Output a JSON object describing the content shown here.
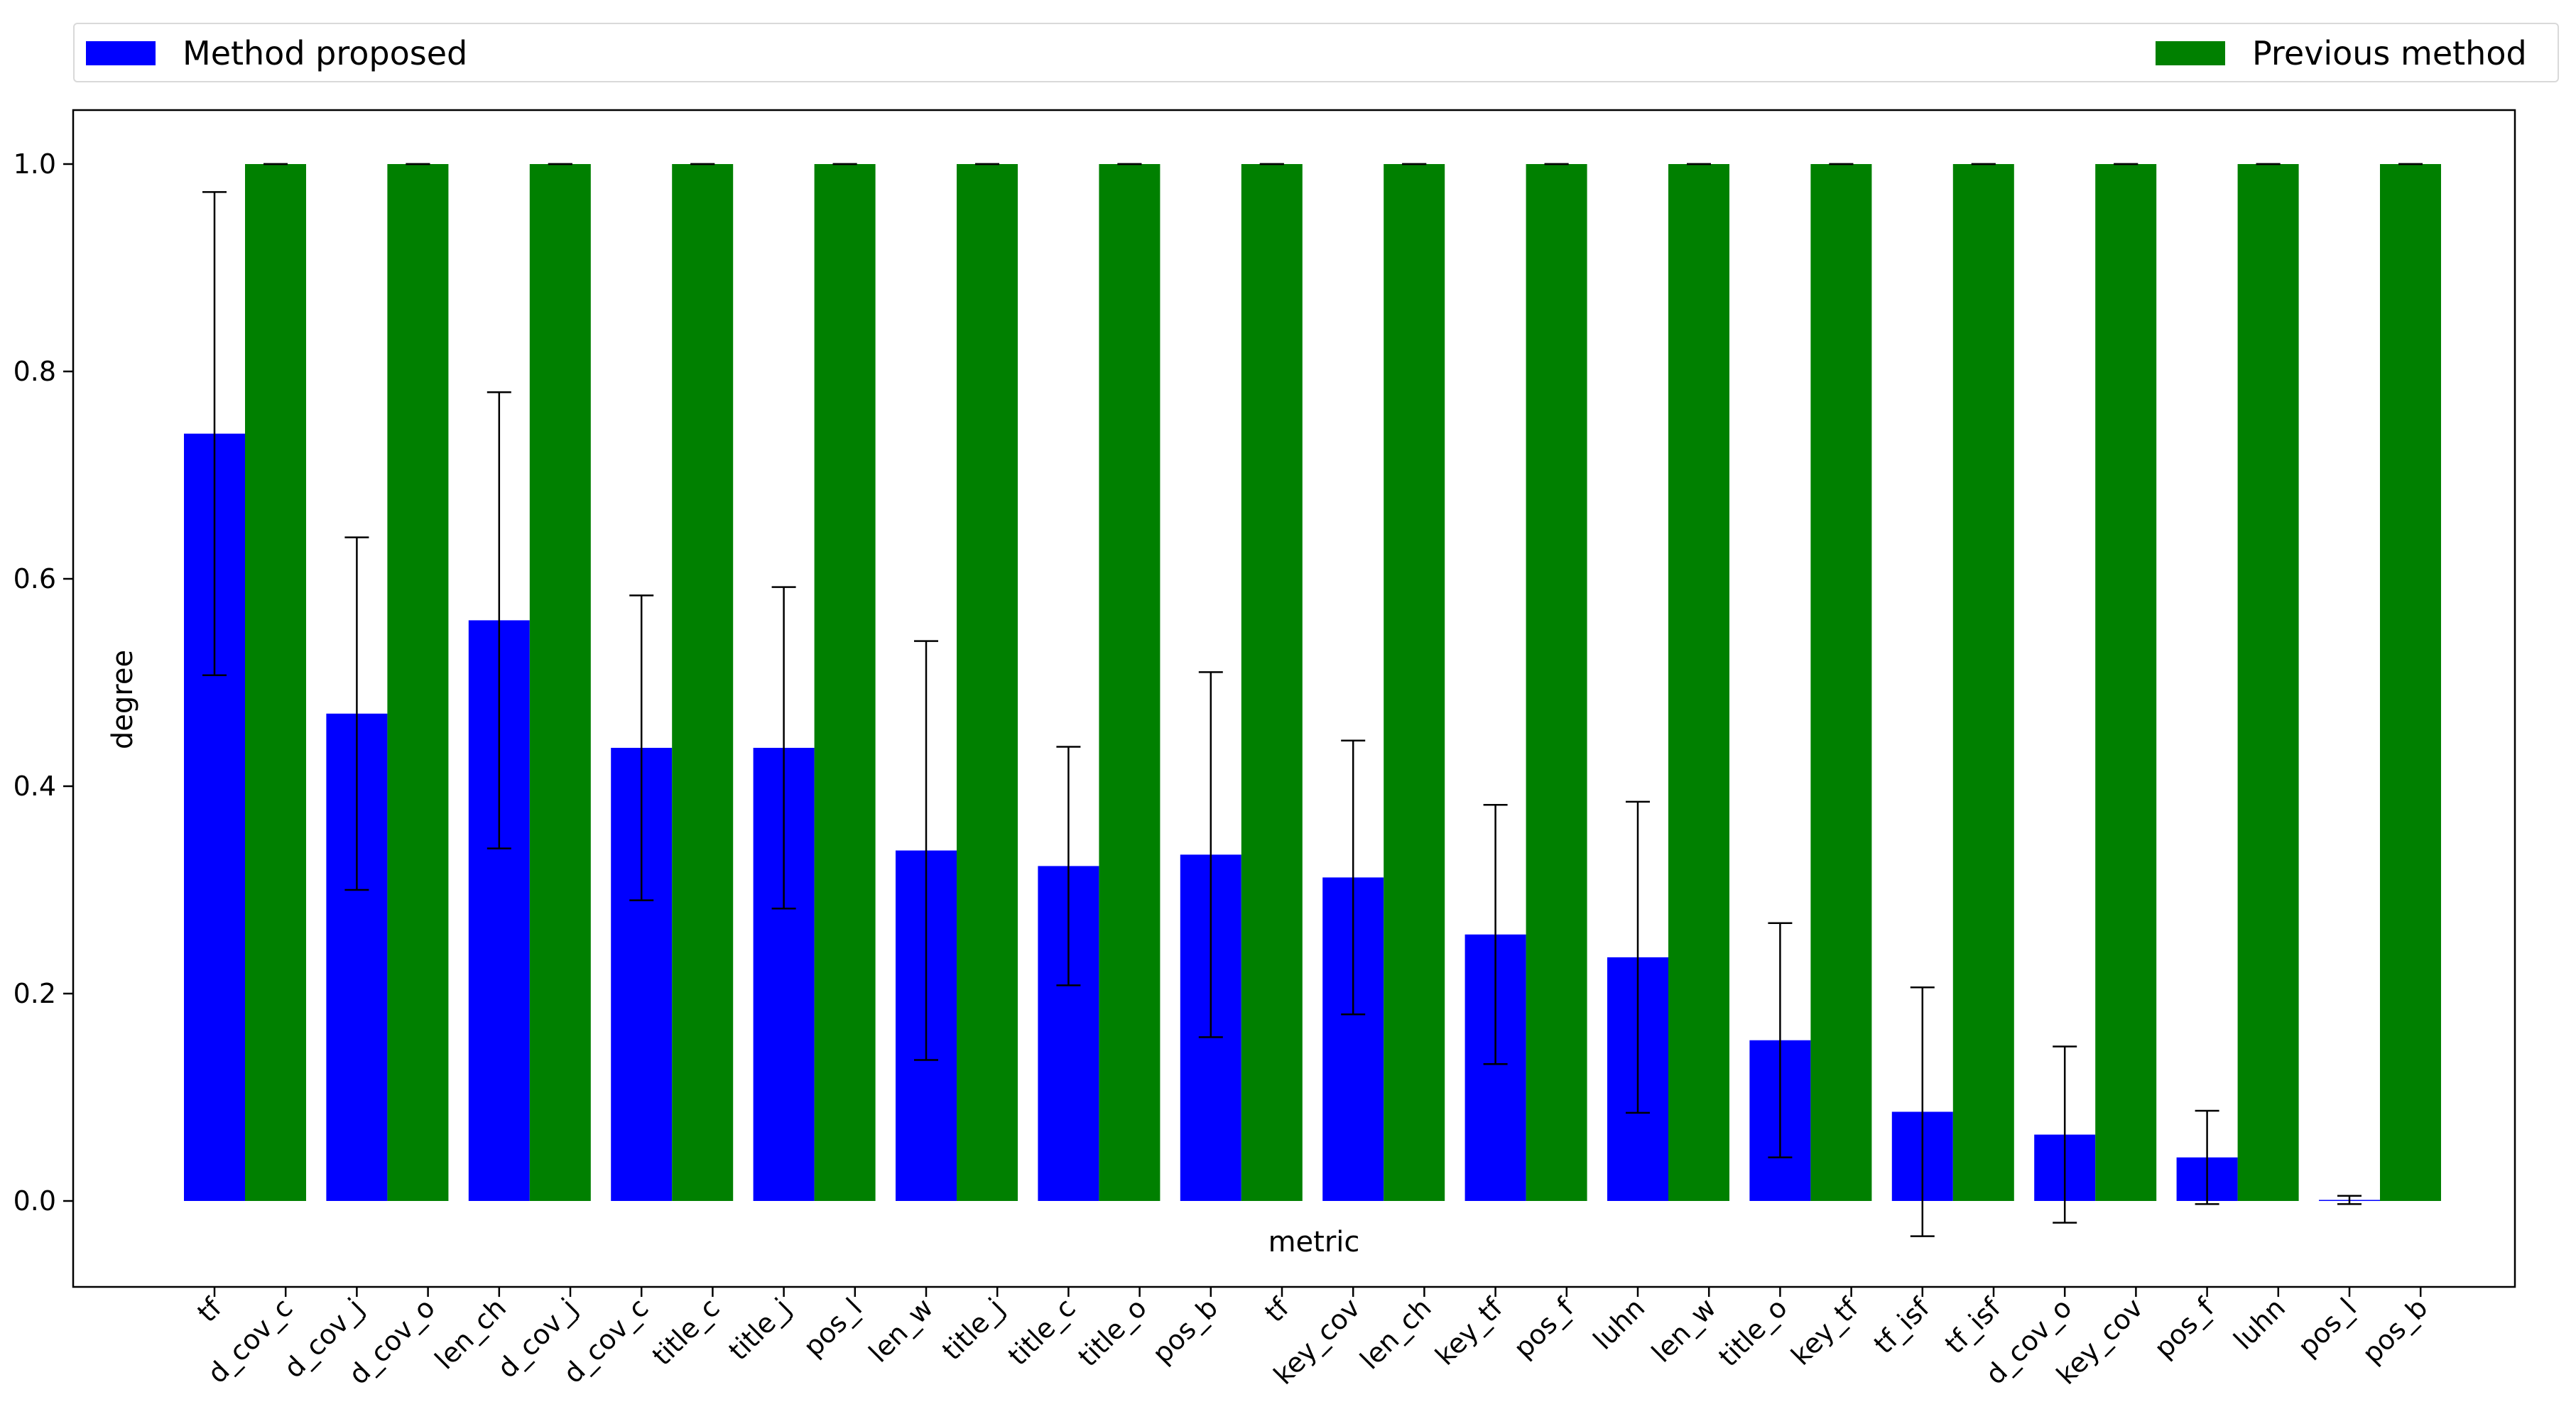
{
  "chart_data": {
    "type": "bar",
    "title": "",
    "xlabel": "metric",
    "ylabel": "degree",
    "ylim": [
      0,
      1.05
    ],
    "yticks": [
      "0.0",
      "0.2",
      "0.4",
      "0.6",
      "0.8",
      "1.0"
    ],
    "grid": false,
    "legend_placement": "top, outside plot, spanning width",
    "groups": 16,
    "tick_labels": [
      "tf",
      "d_cov_c",
      "d_cov_j",
      "d_cov_o",
      "len_ch",
      "d_cov_j",
      "d_cov_c",
      "title_c",
      "title_j",
      "pos_l",
      "len_w",
      "title_j",
      "title_c",
      "title_o",
      "pos_b",
      "tf",
      "key_cov",
      "len_ch",
      "key_tf",
      "pos_f",
      "luhn",
      "len_w",
      "title_o",
      "key_tf",
      "tf_isf",
      "tf_isf",
      "d_cov_o",
      "key_cov",
      "pos_f",
      "luhn",
      "pos_l",
      "pos_b"
    ],
    "series": [
      {
        "name": "Method proposed",
        "color": "#0000ff",
        "values": [
          0.74,
          0.47,
          0.56,
          0.437,
          0.437,
          0.338,
          0.323,
          0.334,
          0.312,
          0.257,
          0.235,
          0.155,
          0.086,
          0.064,
          0.042,
          0.001
        ],
        "errors": [
          0.233,
          0.17,
          0.22,
          0.147,
          0.155,
          0.202,
          0.115,
          0.176,
          0.132,
          0.125,
          0.15,
          0.113,
          0.12,
          0.085,
          0.045,
          0.004
        ]
      },
      {
        "name": "Previous method",
        "color": "#008000",
        "values": [
          1,
          1,
          1,
          1,
          1,
          1,
          1,
          1,
          1,
          1,
          1,
          1,
          1,
          1,
          1,
          1
        ],
        "errors": [
          0,
          0,
          0,
          0,
          0,
          0,
          0,
          0,
          0,
          0,
          0,
          0,
          0,
          0,
          0,
          0
        ]
      }
    ]
  }
}
